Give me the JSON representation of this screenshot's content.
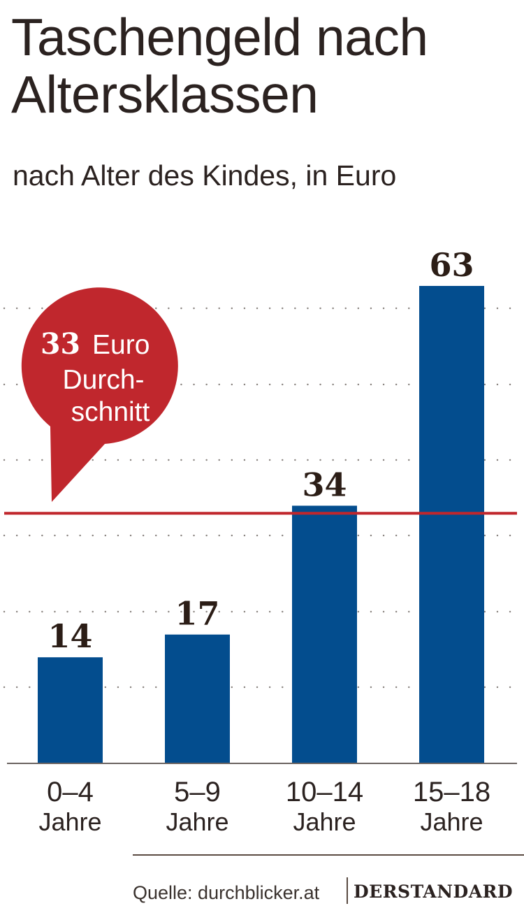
{
  "header": {
    "title": "Taschengeld nach Altersklassen",
    "subtitle": "nach Alter des Kindes, in Euro"
  },
  "chart_data": {
    "type": "bar",
    "title": "Taschengeld nach Altersklassen",
    "subtitle": "nach Alter des Kindes, in Euro",
    "categories": [
      "0–4",
      "5–9",
      "10–14",
      "15–18"
    ],
    "category_unit": "Jahre",
    "values": [
      14,
      17,
      34,
      63
    ],
    "bar_color": "#034d8e",
    "ylim": [
      0,
      63
    ],
    "grid": "dotted",
    "reference_line": {
      "value": 33,
      "color": "#c0272d"
    },
    "callout": {
      "number": "33",
      "unit": "Euro",
      "line2": "Durch-",
      "line3": "schnitt",
      "color": "#c0272d"
    }
  },
  "footer": {
    "source": "Quelle: durchblicker.at",
    "brand": "DERSTANDARD"
  }
}
